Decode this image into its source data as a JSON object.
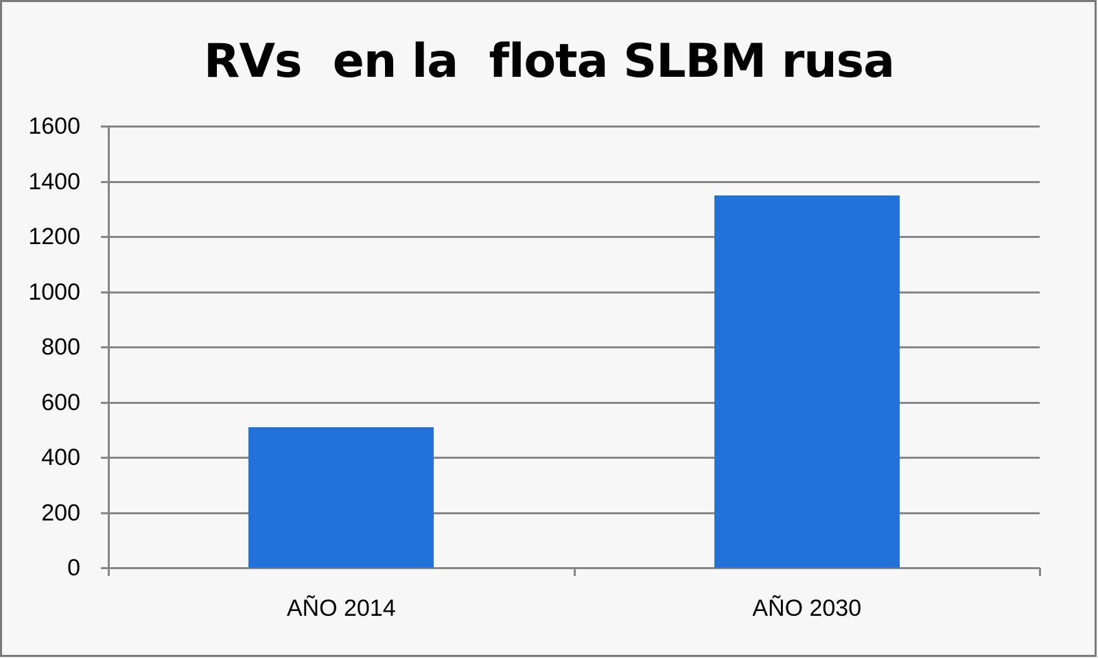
{
  "chart_data": {
    "type": "bar",
    "title": "RVs  en la  flota SLBM rusa",
    "categories": [
      "AÑO 2014",
      "AÑO 2030"
    ],
    "values": [
      510,
      1350
    ],
    "xlabel": "",
    "ylabel": "",
    "ylim": [
      0,
      1600
    ],
    "yticks": [
      0,
      200,
      400,
      600,
      800,
      1000,
      1200,
      1400,
      1600
    ],
    "ytick_labels": [
      "0",
      "200",
      "400",
      "600",
      "800",
      "1000",
      "1200",
      "1400",
      "1600"
    ],
    "grid": true,
    "legend": null,
    "colors": {
      "bar": "#2272d9",
      "grid": "#868686",
      "frame": "#7a7a7a",
      "background": "#f7f7f7"
    }
  }
}
